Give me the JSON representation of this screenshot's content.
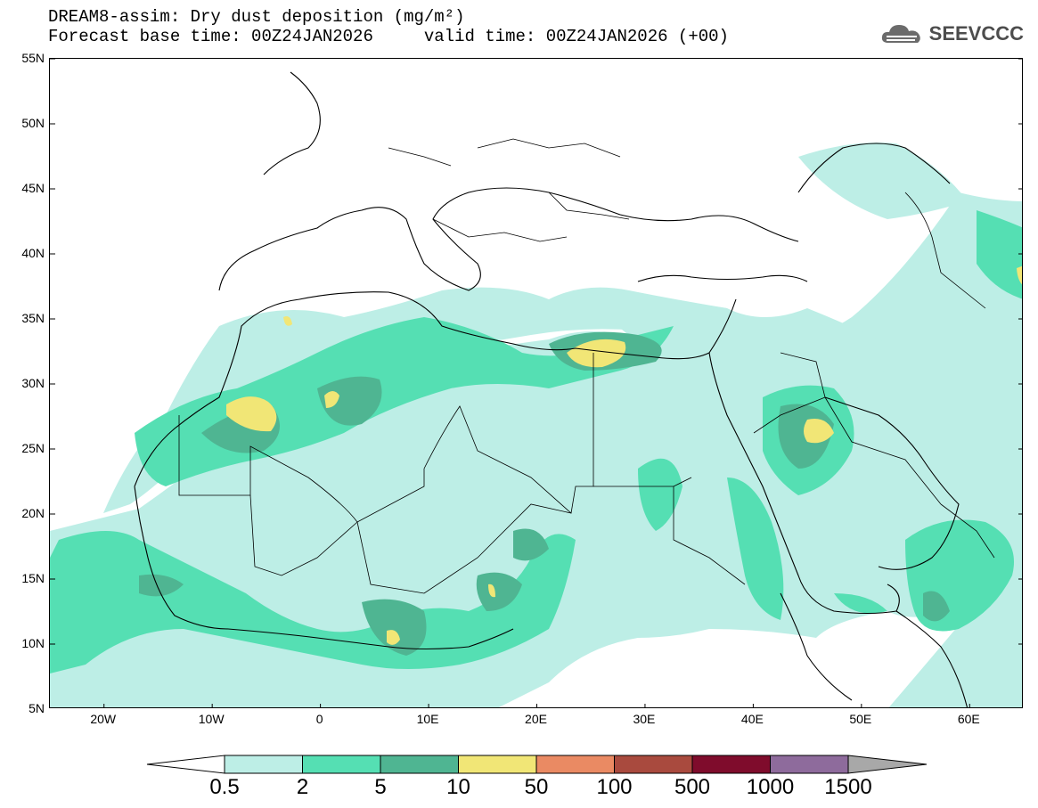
{
  "header": {
    "title_line1": "DREAM8-assim: Dry dust deposition (mg/m²)",
    "title_line2": "Forecast base time: 00Z24JAN2026     valid time: 00Z24JAN2026 (+00)"
  },
  "logo": {
    "text": "SEEVCCC",
    "icon": "cloud-icon"
  },
  "map": {
    "lat_labels": [
      "55N",
      "50N",
      "45N",
      "40N",
      "35N",
      "30N",
      "25N",
      "20N",
      "15N",
      "10N",
      "5N"
    ],
    "lon_labels": [
      "20W",
      "10W",
      "0",
      "10E",
      "20E",
      "30E",
      "40E",
      "50E",
      "60E"
    ],
    "lon_range": [
      -25,
      65
    ],
    "lat_range": [
      5,
      55
    ]
  },
  "colorbar": {
    "labels": [
      "0.5",
      "2",
      "5",
      "10",
      "50",
      "100",
      "500",
      "1000",
      "1500"
    ],
    "colors": [
      "#ffffff",
      "#bdeee6",
      "#55dfb3",
      "#4fb592",
      "#f1e676",
      "#ea8a63",
      "#a94a3e",
      "#7f0c2c",
      "#8e6b9c",
      "#a8a8a8"
    ]
  }
}
